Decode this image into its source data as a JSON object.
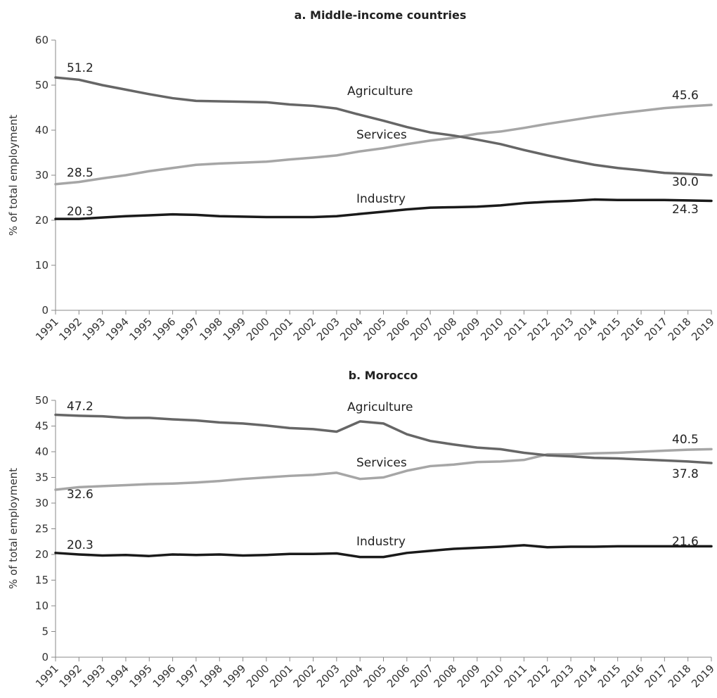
{
  "colors": {
    "Agriculture": "#666666",
    "Services": "#a6a6a6",
    "Industry": "#1a1a1a"
  },
  "chart_data": [
    {
      "type": "line",
      "title": "a. Middle-income countries",
      "ylabel": "% of total employment",
      "ylim": [
        0,
        60
      ],
      "yticks": [
        0,
        10,
        20,
        30,
        40,
        50,
        60
      ],
      "x": [
        "1991",
        "1992",
        "1993",
        "1994",
        "1995",
        "1996",
        "1997",
        "1998",
        "1999",
        "2000",
        "2001",
        "2002",
        "2003",
        "2004",
        "2005",
        "2006",
        "2007",
        "2008",
        "2009",
        "2010",
        "2011",
        "2012",
        "2013",
        "2014",
        "2015",
        "2016",
        "2017",
        "2018",
        "2019"
      ],
      "series": [
        {
          "name": "Agriculture",
          "values": [
            51.7,
            51.2,
            50.0,
            49.0,
            48.0,
            47.1,
            46.5,
            46.4,
            46.3,
            46.2,
            45.7,
            45.4,
            44.8,
            43.4,
            42.1,
            40.7,
            39.5,
            38.8,
            37.9,
            36.9,
            35.6,
            34.4,
            33.3,
            32.3,
            31.6,
            31.1,
            30.5,
            30.3,
            30.0
          ]
        },
        {
          "name": "Services",
          "values": [
            28.0,
            28.5,
            29.3,
            30.0,
            30.9,
            31.6,
            32.3,
            32.6,
            32.8,
            33.0,
            33.5,
            33.9,
            34.4,
            35.3,
            36.0,
            36.9,
            37.7,
            38.3,
            39.2,
            39.7,
            40.5,
            41.4,
            42.2,
            43.0,
            43.7,
            44.3,
            44.9,
            45.3,
            45.6
          ]
        },
        {
          "name": "Industry",
          "values": [
            20.3,
            20.3,
            20.6,
            20.9,
            21.1,
            21.3,
            21.2,
            20.9,
            20.8,
            20.7,
            20.7,
            20.7,
            20.9,
            21.4,
            21.9,
            22.4,
            22.8,
            22.9,
            23.0,
            23.3,
            23.8,
            24.1,
            24.3,
            24.6,
            24.5,
            24.5,
            24.5,
            24.4,
            24.3
          ]
        }
      ],
      "annotations": [
        {
          "text": "51.2"
        },
        {
          "text": "Agriculture"
        },
        {
          "text": "45.6"
        },
        {
          "text": "Services"
        },
        {
          "text": "28.5"
        },
        {
          "text": "30.0"
        },
        {
          "text": "Industry"
        },
        {
          "text": "24.3"
        },
        {
          "text": "20.3"
        }
      ]
    },
    {
      "type": "line",
      "title": "b. Morocco",
      "ylabel": "% of total employment",
      "ylim": [
        0,
        50
      ],
      "yticks": [
        0,
        5,
        10,
        15,
        20,
        25,
        30,
        35,
        40,
        45,
        50
      ],
      "x": [
        "1991",
        "1992",
        "1993",
        "1994",
        "1995",
        "1996",
        "1997",
        "1998",
        "1999",
        "2000",
        "2001",
        "2002",
        "2003",
        "2004",
        "2005",
        "2006",
        "2007",
        "2008",
        "2009",
        "2010",
        "2011",
        "2012",
        "2013",
        "2014",
        "2015",
        "2016",
        "2017",
        "2018",
        "2019"
      ],
      "series": [
        {
          "name": "Agriculture",
          "values": [
            47.2,
            47.0,
            46.9,
            46.6,
            46.6,
            46.3,
            46.1,
            45.7,
            45.5,
            45.1,
            44.6,
            44.4,
            43.9,
            45.9,
            45.5,
            43.4,
            42.1,
            41.4,
            40.8,
            40.5,
            39.8,
            39.3,
            39.1,
            38.8,
            38.7,
            38.5,
            38.3,
            38.1,
            37.8
          ]
        },
        {
          "name": "Services",
          "values": [
            32.6,
            33.1,
            33.3,
            33.5,
            33.7,
            33.8,
            34.0,
            34.3,
            34.7,
            35.0,
            35.3,
            35.5,
            35.9,
            34.7,
            35.0,
            36.3,
            37.2,
            37.5,
            38.0,
            38.1,
            38.4,
            39.5,
            39.5,
            39.7,
            39.8,
            40.0,
            40.2,
            40.4,
            40.5
          ]
        },
        {
          "name": "Industry",
          "values": [
            20.3,
            20.0,
            19.8,
            19.9,
            19.7,
            20.0,
            19.9,
            20.0,
            19.8,
            19.9,
            20.1,
            20.1,
            20.2,
            19.5,
            19.5,
            20.3,
            20.7,
            21.1,
            21.3,
            21.5,
            21.8,
            21.4,
            21.5,
            21.5,
            21.6,
            21.6,
            21.6,
            21.6,
            21.6
          ]
        }
      ],
      "annotations": [
        {
          "text": "47.2"
        },
        {
          "text": "Agriculture"
        },
        {
          "text": "Services"
        },
        {
          "text": "32.6"
        },
        {
          "text": "40.5"
        },
        {
          "text": "37.8"
        },
        {
          "text": "Industry"
        },
        {
          "text": "20.3"
        },
        {
          "text": "21.6"
        }
      ]
    }
  ]
}
